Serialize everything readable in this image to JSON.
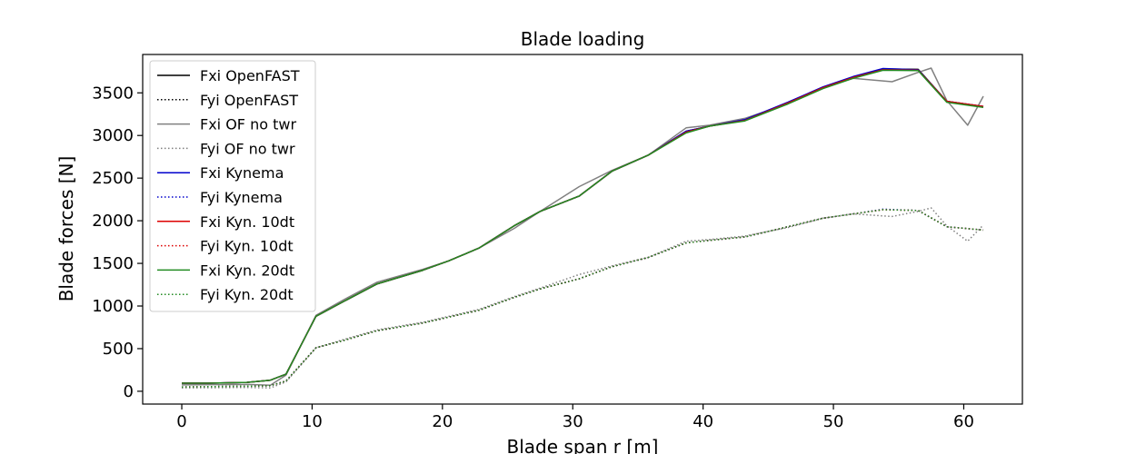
{
  "chart_data": {
    "type": "line",
    "title": "Blade loading",
    "xlabel": "Blade span r [m]",
    "ylabel": "Blade forces [N]",
    "xlim": [
      -3.0,
      64.5
    ],
    "ylim": [
      -150,
      3950
    ],
    "xticks": [
      0,
      10,
      20,
      30,
      40,
      50,
      60
    ],
    "yticks": [
      0,
      500,
      1000,
      1500,
      2000,
      2500,
      3000,
      3500
    ],
    "grid": false,
    "legend_position": "top-left",
    "series": [
      {
        "name": "Fxi OpenFAST",
        "color": "#000000",
        "dash": "solid",
        "x": [
          0,
          2,
          5,
          6.8,
          8,
          10.3,
          12.5,
          15,
          18.5,
          20.5,
          22.8,
          25.5,
          27.5,
          30.5,
          33,
          35.8,
          38.7,
          40.5,
          43.2,
          46.5,
          49.2,
          51.5,
          53.8,
          56.5,
          58.7,
          61.5
        ],
        "y": [
          95,
          95,
          105,
          130,
          200,
          880,
          1060,
          1260,
          1420,
          1530,
          1680,
          1940,
          2110,
          2290,
          2580,
          2770,
          3050,
          3110,
          3180,
          3380,
          3560,
          3680,
          3780,
          3775,
          3400,
          3340
        ]
      },
      {
        "name": "Fyi OpenFAST",
        "color": "#000000",
        "dash": "dotted",
        "x": [
          0,
          2,
          5,
          6.8,
          8,
          10.3,
          12.5,
          15,
          18.5,
          20.5,
          22.8,
          25.5,
          27.5,
          30.5,
          33,
          35.8,
          38.7,
          40.5,
          43.2,
          46.5,
          49.2,
          51.5,
          53.8,
          56.5,
          58.7,
          61.5
        ],
        "y": [
          50,
          55,
          60,
          65,
          120,
          510,
          600,
          710,
          800,
          870,
          950,
          1100,
          1200,
          1320,
          1460,
          1570,
          1740,
          1770,
          1810,
          1930,
          2030,
          2080,
          2130,
          2120,
          1930,
          1890
        ]
      },
      {
        "name": "Fxi OF no twr",
        "color": "#808080",
        "dash": "solid",
        "x": [
          0,
          2,
          5,
          6.8,
          8,
          10.3,
          12.5,
          15,
          18.5,
          20.5,
          22.8,
          25.5,
          27.5,
          30.5,
          33,
          35.8,
          38.7,
          40.5,
          43.2,
          46.5,
          49.2,
          51.5,
          54.5,
          56.5,
          57.5,
          58.7,
          60.3,
          61.5
        ],
        "y": [
          75,
          78,
          80,
          70,
          190,
          890,
          1080,
          1280,
          1430,
          1530,
          1680,
          1910,
          2110,
          2400,
          2590,
          2770,
          3090,
          3120,
          3200,
          3370,
          3560,
          3670,
          3630,
          3740,
          3790,
          3410,
          3120,
          3460
        ]
      },
      {
        "name": "Fyi OF no twr",
        "color": "#808080",
        "dash": "dotted",
        "x": [
          0,
          2,
          5,
          6.8,
          8,
          10.3,
          12.5,
          15,
          18.5,
          20.5,
          22.8,
          25.5,
          27.5,
          30.5,
          33,
          35.8,
          38.7,
          40.5,
          43.2,
          46.5,
          49.2,
          51.5,
          54.5,
          56.5,
          57.5,
          58.7,
          60.3,
          61.5
        ],
        "y": [
          40,
          42,
          45,
          40,
          110,
          510,
          610,
          720,
          810,
          880,
          960,
          1110,
          1210,
          1370,
          1470,
          1570,
          1760,
          1780,
          1820,
          1920,
          2030,
          2080,
          2050,
          2110,
          2150,
          1940,
          1760,
          1950
        ]
      },
      {
        "name": "Fxi Kynema",
        "color": "#0000cc",
        "dash": "solid",
        "x": [
          0,
          2,
          5,
          6.8,
          8,
          10.3,
          12.5,
          15,
          18.5,
          20.5,
          22.8,
          25.5,
          27.5,
          30.5,
          33,
          35.8,
          38.7,
          40.5,
          43.2,
          46.5,
          49.2,
          51.5,
          53.8,
          56.5,
          58.7,
          61.5
        ],
        "y": [
          95,
          95,
          105,
          130,
          200,
          880,
          1060,
          1260,
          1420,
          1530,
          1680,
          1940,
          2110,
          2290,
          2580,
          2770,
          3050,
          3110,
          3185,
          3390,
          3570,
          3690,
          3785,
          3770,
          3400,
          3340
        ]
      },
      {
        "name": "Fyi Kynema",
        "color": "#0000cc",
        "dash": "dotted",
        "x": [
          0,
          2,
          5,
          6.8,
          8,
          10.3,
          12.5,
          15,
          18.5,
          20.5,
          22.8,
          25.5,
          27.5,
          30.5,
          33,
          35.8,
          38.7,
          40.5,
          43.2,
          46.5,
          49.2,
          51.5,
          53.8,
          56.5,
          58.7,
          61.5
        ],
        "y": [
          50,
          55,
          60,
          65,
          120,
          510,
          600,
          710,
          800,
          870,
          950,
          1100,
          1200,
          1320,
          1460,
          1570,
          1740,
          1770,
          1810,
          1930,
          2030,
          2080,
          2135,
          2120,
          1930,
          1890
        ]
      },
      {
        "name": "Fxi Kyn. 10dt",
        "color": "#dd0000",
        "dash": "solid",
        "x": [
          0,
          2,
          5,
          6.8,
          8,
          10.3,
          12.5,
          15,
          18.5,
          20.5,
          22.8,
          25.5,
          27.5,
          30.5,
          33,
          35.8,
          38.7,
          40.5,
          43.2,
          46.5,
          49.2,
          51.5,
          53.8,
          56.5,
          58.7,
          61.5
        ],
        "y": [
          95,
          95,
          105,
          130,
          200,
          880,
          1060,
          1260,
          1420,
          1530,
          1680,
          1940,
          2110,
          2290,
          2580,
          2770,
          3040,
          3110,
          3175,
          3380,
          3560,
          3680,
          3770,
          3765,
          3400,
          3340
        ]
      },
      {
        "name": "Fyi Kyn. 10dt",
        "color": "#dd0000",
        "dash": "dotted",
        "x": [
          0,
          2,
          5,
          6.8,
          8,
          10.3,
          12.5,
          15,
          18.5,
          20.5,
          22.8,
          25.5,
          27.5,
          30.5,
          33,
          35.8,
          38.7,
          40.5,
          43.2,
          46.5,
          49.2,
          51.5,
          53.8,
          56.5,
          58.7,
          61.5
        ],
        "y": [
          50,
          55,
          60,
          65,
          120,
          510,
          600,
          710,
          800,
          870,
          950,
          1100,
          1200,
          1320,
          1460,
          1570,
          1740,
          1770,
          1810,
          1930,
          2030,
          2080,
          2130,
          2120,
          1930,
          1890
        ]
      },
      {
        "name": "Fxi Kyn. 20dt",
        "color": "#228b22",
        "dash": "solid",
        "x": [
          0,
          2,
          5,
          6.8,
          8,
          10.3,
          12.5,
          15,
          18.5,
          20.5,
          22.8,
          25.5,
          27.5,
          30.5,
          33,
          35.8,
          38.7,
          40.5,
          43.2,
          46.5,
          49.2,
          51.5,
          53.8,
          56.5,
          58.7,
          61.5
        ],
        "y": [
          95,
          95,
          105,
          130,
          200,
          880,
          1060,
          1260,
          1420,
          1530,
          1680,
          1940,
          2110,
          2290,
          2580,
          2770,
          3030,
          3110,
          3170,
          3370,
          3550,
          3670,
          3765,
          3760,
          3390,
          3330
        ]
      },
      {
        "name": "Fyi Kyn. 20dt",
        "color": "#228b22",
        "dash": "dotted",
        "x": [
          0,
          2,
          5,
          6.8,
          8,
          10.3,
          12.5,
          15,
          18.5,
          20.5,
          22.8,
          25.5,
          27.5,
          30.5,
          33,
          35.8,
          38.7,
          40.5,
          43.2,
          46.5,
          49.2,
          51.5,
          53.8,
          56.5,
          58.7,
          61.5
        ],
        "y": [
          50,
          55,
          60,
          65,
          120,
          510,
          600,
          710,
          800,
          870,
          950,
          1100,
          1200,
          1320,
          1460,
          1570,
          1740,
          1770,
          1810,
          1930,
          2030,
          2080,
          2130,
          2120,
          1930,
          1890
        ]
      }
    ]
  }
}
